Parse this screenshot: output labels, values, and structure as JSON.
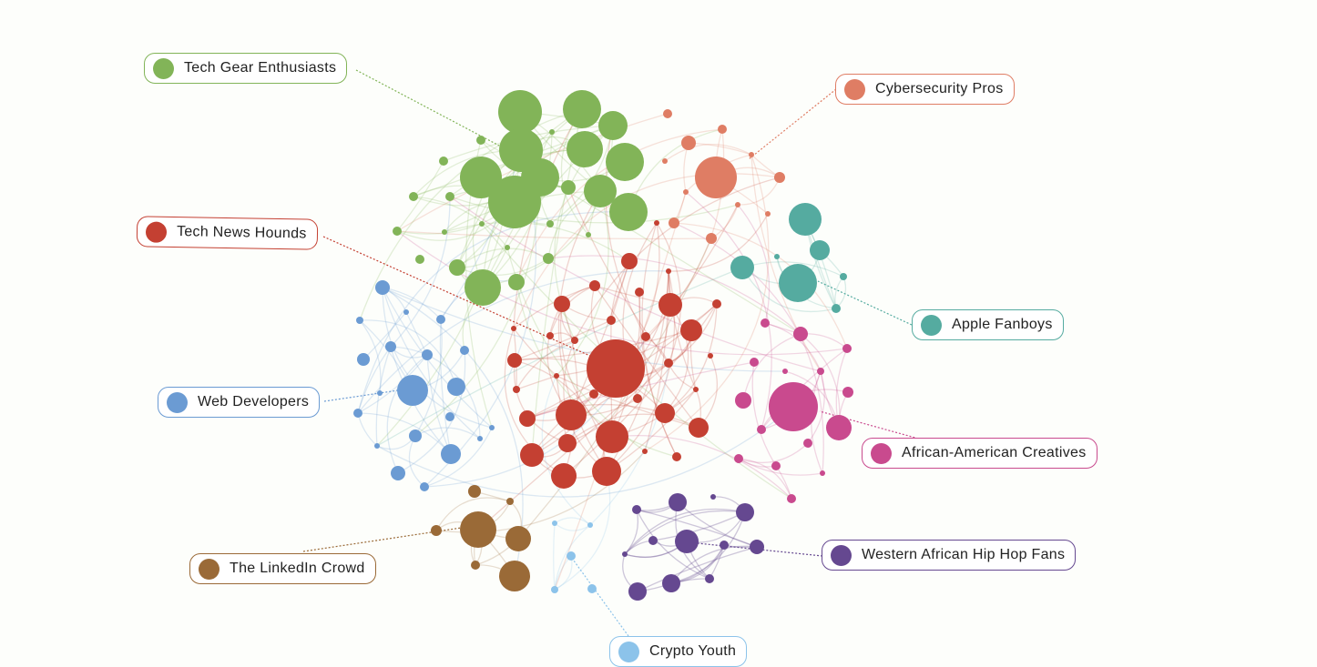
{
  "communities": [
    {
      "id": "green",
      "label": "Tech Gear Enthusiasts",
      "color": "#82b458"
    },
    {
      "id": "salmon",
      "label": "Cybersecurity Pros",
      "color": "#df7d64"
    },
    {
      "id": "red",
      "label": "Tech News Hounds",
      "color": "#c44032"
    },
    {
      "id": "teal",
      "label": "Apple Fanboys",
      "color": "#55aba0"
    },
    {
      "id": "blue",
      "label": "Web Developers",
      "color": "#6b9bd3"
    },
    {
      "id": "pink",
      "label": "African-American Creatives",
      "color": "#c94a8e"
    },
    {
      "id": "brown",
      "label": "The LinkedIn Crowd",
      "color": "#9a6a37"
    },
    {
      "id": "purple",
      "label": "Western African Hip Hop Fans",
      "color": "#654890"
    },
    {
      "id": "lightblue",
      "label": "Crypto Youth",
      "color": "#8cc3ea"
    }
  ]
}
